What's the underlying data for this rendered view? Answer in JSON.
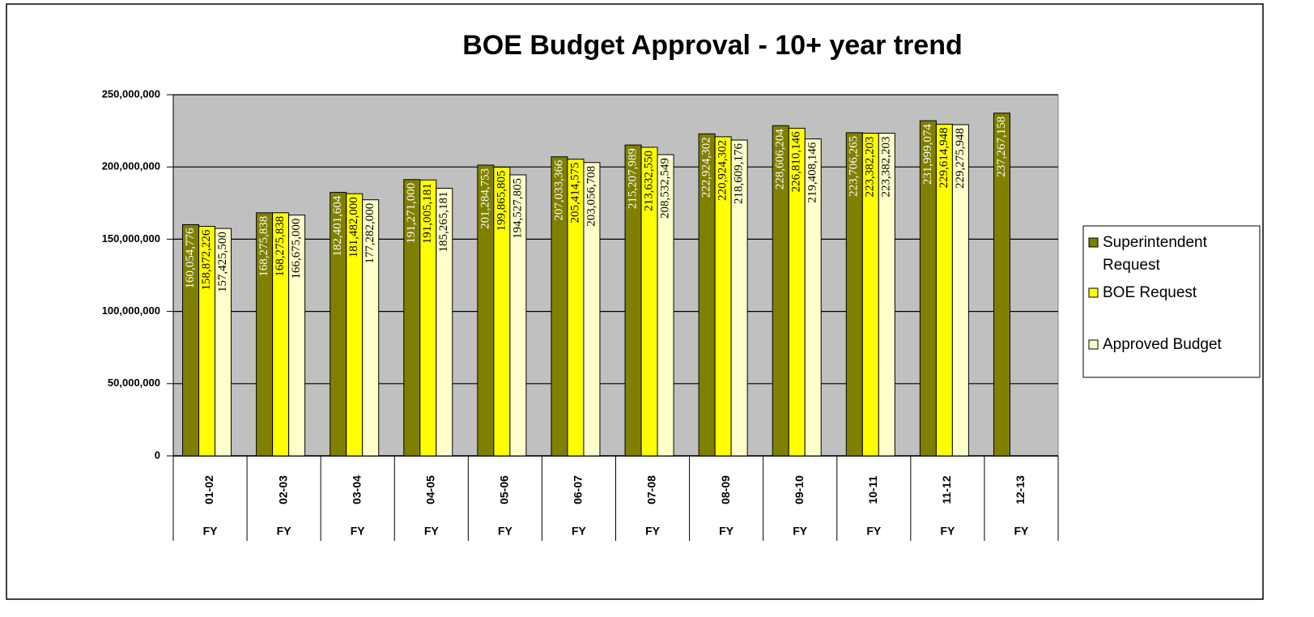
{
  "chart_data": {
    "type": "bar",
    "title": "BOE Budget Approval  - 10+ year trend",
    "categories": [
      "01-02",
      "02-03",
      "03-04",
      "04-05",
      "05-06",
      "06-07",
      "07-08",
      "08-09",
      "09-10",
      "10-11",
      "11-12",
      "12-13"
    ],
    "category_sublabels": [
      "FY",
      "FY",
      "FY",
      "FY",
      "FY",
      "FY",
      "FY",
      "FY",
      "FY",
      "FY",
      "FY",
      "FY"
    ],
    "series": [
      {
        "name": "Superintendent Request",
        "color": "#808000",
        "label_color": "#ffffff",
        "values": [
          160054776,
          168275838,
          182401604,
          191271000,
          201284753,
          207033366,
          215207989,
          222924302,
          228606204,
          223706265,
          231999074,
          237267158
        ],
        "value_labels": [
          "160,054,776",
          "168,275,838",
          "182,401,604",
          "191,271,000",
          "201,284,753",
          "207,033,366",
          "215,207,989",
          "222,924,302",
          "228,606,204",
          "223,706,265",
          "231,999,074",
          "237,267,158"
        ]
      },
      {
        "name": "BOE Request",
        "color": "#ffff00",
        "label_color": "#000000",
        "values": [
          158872226,
          168275838,
          181482000,
          191005181,
          199865805,
          205414575,
          213632550,
          220924302,
          226810146,
          223382203,
          229614948,
          null
        ],
        "value_labels": [
          "158,872,226",
          "168,275,838",
          "181,482,000",
          "191,005,181",
          "199,865,805",
          "205,414,575",
          "213,632,550",
          "220,924,302",
          "226,810,146",
          "223,382,203",
          "229,614,948",
          null
        ]
      },
      {
        "name": "Approved Budget",
        "color": "#ffffcc",
        "label_color": "#000000",
        "values": [
          157425500,
          166675000,
          177282000,
          185265181,
          194527805,
          203056708,
          208532549,
          218609176,
          219408146,
          223382203,
          229275948,
          null
        ],
        "value_labels": [
          "157,425,500",
          "166,675,000",
          "177,282,000",
          "185,265,181",
          "194,527,805",
          "203,056,708",
          "208,532,549",
          "218,609,176",
          "219,408,146",
          "223,382,203",
          "229,275,948",
          null
        ]
      }
    ],
    "ylim": [
      0,
      250000000
    ],
    "yticks": [
      {
        "value": 0,
        "label": "0"
      },
      {
        "value": 50000000,
        "label": "50,000,000"
      },
      {
        "value": 100000000,
        "label": "100,000,000"
      },
      {
        "value": 150000000,
        "label": "150,000,000"
      },
      {
        "value": 200000000,
        "label": "200,000,000"
      },
      {
        "value": 250000000,
        "label": "250,000,000"
      }
    ],
    "grid": true,
    "plot_background": "#c0c0c0",
    "legend": "right"
  }
}
